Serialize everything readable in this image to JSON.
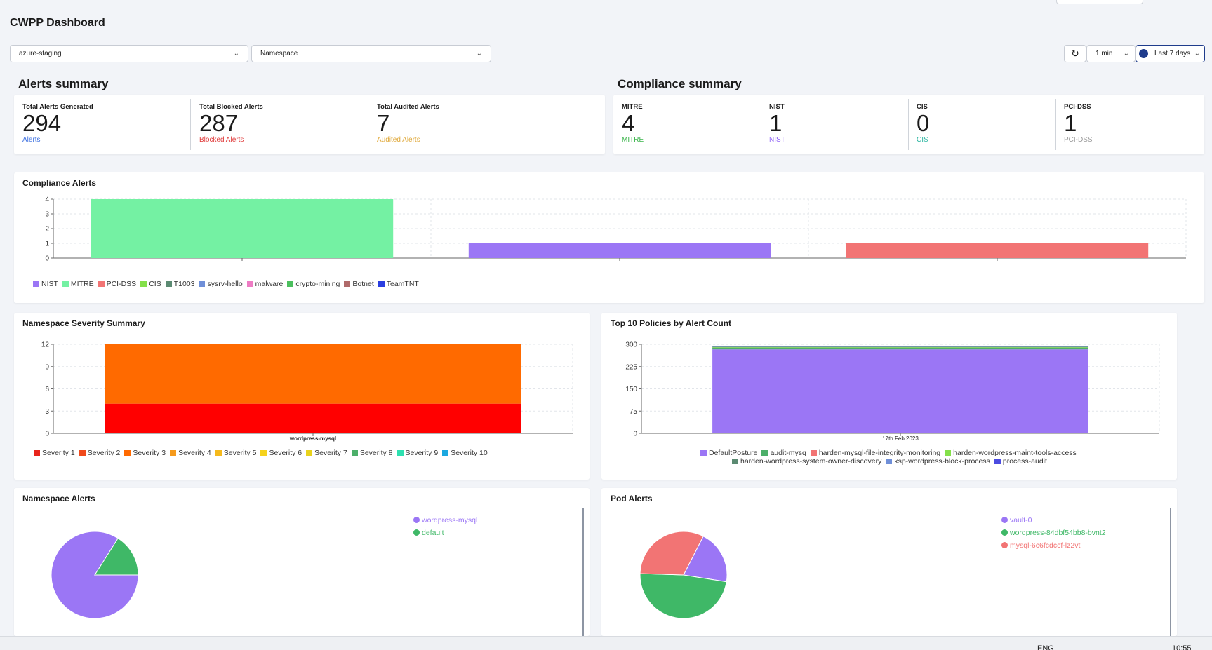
{
  "page_title": "CWPP Dashboard",
  "filters": {
    "cluster": "azure-staging",
    "namespace": "Namespace",
    "refresh_interval": "1 min",
    "time_range": "Last 7 days"
  },
  "alerts_summary": {
    "heading": "Alerts summary",
    "stats": [
      {
        "label": "Total Alerts Generated",
        "value": "294",
        "sub": "Alerts",
        "color": "#3b6fe0"
      },
      {
        "label": "Total Blocked Alerts",
        "value": "287",
        "sub": "Blocked Alerts",
        "color": "#e03b3b"
      },
      {
        "label": "Total Audited Alerts",
        "value": "7",
        "sub": "Audited Alerts",
        "color": "#e0a93b"
      }
    ]
  },
  "compliance_summary": {
    "heading": "Compliance summary",
    "stats": [
      {
        "label": "MITRE",
        "value": "4",
        "sub": "MITRE",
        "color": "#3ab44a"
      },
      {
        "label": "NIST",
        "value": "1",
        "sub": "NIST",
        "color": "#8b5cf6"
      },
      {
        "label": "CIS",
        "value": "0",
        "sub": "CIS",
        "color": "#2bb5a0"
      },
      {
        "label": "PCI-DSS",
        "value": "1",
        "sub": "PCI-DSS",
        "color": "#999999"
      }
    ]
  },
  "compliance_alerts": {
    "title": "Compliance Alerts",
    "chart_data": {
      "type": "bar",
      "categories": [
        "",
        "",
        ""
      ],
      "series": [
        {
          "name": "MITRE",
          "values": [
            4,
            0,
            0
          ],
          "color": "#74f1a3"
        },
        {
          "name": "NIST",
          "values": [
            0,
            1,
            0
          ],
          "color": "#9b76f5"
        },
        {
          "name": "PCI-DSS",
          "values": [
            0,
            0,
            1
          ],
          "color": "#f27474"
        }
      ],
      "ylim": [
        0,
        4
      ],
      "yticks": [
        "4",
        "3",
        "2",
        "1",
        "0"
      ],
      "legend": [
        {
          "name": "NIST",
          "color": "#9b76f5"
        },
        {
          "name": "MITRE",
          "color": "#74f1a3"
        },
        {
          "name": "PCI-DSS",
          "color": "#f27474"
        },
        {
          "name": "CIS",
          "color": "#84e04a"
        },
        {
          "name": "T1003",
          "color": "#5b8a72"
        },
        {
          "name": "sysrv-hello",
          "color": "#6f8fd8"
        },
        {
          "name": "malware",
          "color": "#ee7cc4"
        },
        {
          "name": "crypto-mining",
          "color": "#4cbf5e"
        },
        {
          "name": "Botnet",
          "color": "#b06a6a"
        },
        {
          "name": "TeamTNT",
          "color": "#2a3ee0"
        }
      ]
    }
  },
  "namespace_severity": {
    "title": "Namespace Severity Summary",
    "chart_data": {
      "type": "bar",
      "categories": [
        "wordpress-mysql"
      ],
      "series": [
        {
          "name": "Severity 1",
          "values": [
            4
          ],
          "color": "#ff0000"
        },
        {
          "name": "Severity 3",
          "values": [
            8
          ],
          "color": "#ff6a00"
        }
      ],
      "ylim": [
        0,
        12
      ],
      "yticks": [
        "12",
        "9",
        "6",
        "3",
        "0"
      ],
      "legend": [
        {
          "name": "Severity 1",
          "color": "#e8241c"
        },
        {
          "name": "Severity 2",
          "color": "#f04a1c"
        },
        {
          "name": "Severity 3",
          "color": "#ff6a00"
        },
        {
          "name": "Severity 4",
          "color": "#f59a1c"
        },
        {
          "name": "Severity 5",
          "color": "#f5b91c"
        },
        {
          "name": "Severity 6",
          "color": "#f5d21c"
        },
        {
          "name": "Severity 7",
          "color": "#e8d21c"
        },
        {
          "name": "Severity 8",
          "color": "#4caf6a"
        },
        {
          "name": "Severity 9",
          "color": "#2ee0b0"
        },
        {
          "name": "Severity 10",
          "color": "#1ca8e0"
        }
      ]
    }
  },
  "top_policies": {
    "title": "Top 10 Policies by Alert Count",
    "chart_data": {
      "type": "bar",
      "categories": [
        "17th Feb 2023"
      ],
      "series": [
        {
          "name": "DefaultPosture",
          "values": [
            283
          ],
          "color": "#9b76f5"
        },
        {
          "name": "audit-mysq",
          "values": [
            3
          ],
          "color": "#4caf6a"
        },
        {
          "name": "harden-mysql-file-integrity-monitoring",
          "values": [
            2
          ],
          "color": "#f27474"
        },
        {
          "name": "harden-wordpress-maint-tools-access",
          "values": [
            2
          ],
          "color": "#84e04a"
        },
        {
          "name": "harden-wordpress-system-owner-discovery",
          "values": [
            2
          ],
          "color": "#5b8a72"
        },
        {
          "name": "ksp-wordpress-block-process",
          "values": [
            1
          ],
          "color": "#6f8fd8"
        },
        {
          "name": "process-audit",
          "values": [
            1
          ],
          "color": "#4b4be0"
        }
      ],
      "ylim": [
        0,
        300
      ],
      "yticks": [
        "300",
        "225",
        "150",
        "75",
        "0"
      ],
      "legend_row1": [
        {
          "name": "DefaultPosture",
          "color": "#9b76f5"
        },
        {
          "name": "audit-mysq",
          "color": "#4caf6a"
        },
        {
          "name": "harden-mysql-file-integrity-monitoring",
          "color": "#f27474"
        },
        {
          "name": "harden-wordpress-maint-tools-access",
          "color": "#84e04a"
        }
      ],
      "legend_row2": [
        {
          "name": "harden-wordpress-system-owner-discovery",
          "color": "#5b8a72"
        },
        {
          "name": "ksp-wordpress-block-process",
          "color": "#6f8fd8"
        },
        {
          "name": "process-audit",
          "color": "#4b4be0"
        }
      ]
    }
  },
  "namespace_alerts": {
    "title": "Namespace Alerts",
    "chart_data": {
      "type": "pie",
      "slices": [
        {
          "name": "wordpress-mysql",
          "value": 84,
          "color": "#9b76f5"
        },
        {
          "name": "default",
          "value": 16,
          "color": "#3fb867"
        }
      ]
    }
  },
  "pod_alerts": {
    "title": "Pod Alerts",
    "chart_data": {
      "type": "pie",
      "slices": [
        {
          "name": "vault-0",
          "value": 20,
          "color": "#9b76f5"
        },
        {
          "name": "wordpress-84dbf54bb8-bvnt2",
          "value": 48,
          "color": "#3fb867"
        },
        {
          "name": "mysql-6c6fcdccf-lz2vt",
          "value": 32,
          "color": "#f27474"
        }
      ]
    }
  },
  "taskbar": {
    "lang": "ENG",
    "time": "10:55"
  }
}
